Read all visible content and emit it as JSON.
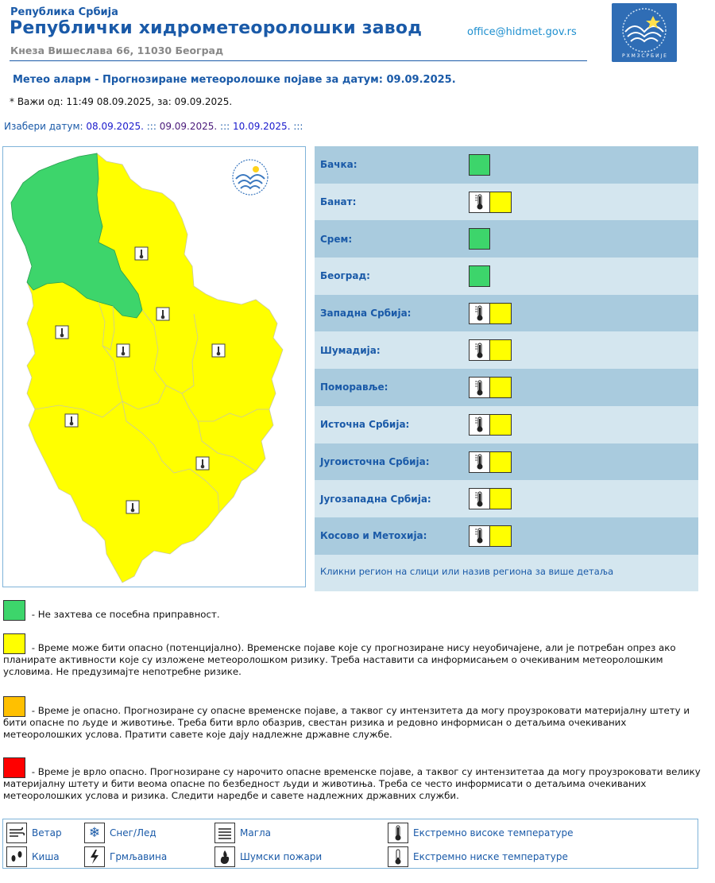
{
  "header": {
    "republic": "Република Србија",
    "institute": "Републички хидрометеоролошки завод",
    "address": "Кнеза Вишеслава 66, 11030 Београд",
    "email": "office@hidmet.gov.rs"
  },
  "alarm": {
    "title": "Метео аларм - Прогнозиране метеоролошке појаве за датум:  09.09.2025.",
    "valid": "* Важи од: 11:49 08.09.2025, за: 09.09.2025."
  },
  "date_select": {
    "label": "Изабери датум: ",
    "dates": [
      "08.09.2025.",
      "09.09.2025.",
      "10.09.2025."
    ],
    "sep": " ::: "
  },
  "regions": [
    {
      "name": "Бачка:",
      "status": "green",
      "icon": ""
    },
    {
      "name": "Банат:",
      "status": "yellow",
      "icon": "thermometer-high-icon"
    },
    {
      "name": "Срем:",
      "status": "green",
      "icon": ""
    },
    {
      "name": "Београд:",
      "status": "green",
      "icon": ""
    },
    {
      "name": "Западна Србија:",
      "status": "yellow",
      "icon": "thermometer-high-icon"
    },
    {
      "name": "Шумадија:",
      "status": "yellow",
      "icon": "thermometer-high-icon"
    },
    {
      "name": "Поморавље:",
      "status": "yellow",
      "icon": "thermometer-high-icon"
    },
    {
      "name": "Источна Србија:",
      "status": "yellow",
      "icon": "thermometer-high-icon"
    },
    {
      "name": "Југоисточна Србија:",
      "status": "yellow",
      "icon": "thermometer-high-icon"
    },
    {
      "name": "Југозападна Србија:",
      "status": "yellow",
      "icon": "thermometer-high-icon"
    },
    {
      "name": "Косово и Метохија:",
      "status": "yellow",
      "icon": "thermometer-high-icon"
    }
  ],
  "region_hint": "Кликни регион на слици или назив региона за више детаља",
  "colors": {
    "green": "#3dd56b",
    "yellow": "#ffff00",
    "orange": "#ffc000",
    "red": "#ff0000"
  },
  "legend": {
    "green": " - Не захтева се посебна приправност.",
    "yellow": " - Време може бити опасно (потенцијално). Временске појаве које су прогнозиране нису неуобичајене, али је потребан опрез ако планирате активности које су изложене метеоролошком ризику. Треба наставити са информисањем о очекиваним метеоролошким условима. Не предузимајте непотребне ризике.",
    "orange": " - Време је опасно. Прогнозиране су опасне временске појаве, а таквог су интензитета да могу проузроковати материјалну штету и бити опасне по људе и животиње. Треба бити врло обазрив, свестан ризика и редовно информисан о детаљима очекиваних метеоролошких услова. Пратити савете које дају надлежне државне службе.",
    "red": " - Време је врло опасно. Прогнозиране су нарочито опасне временске појаве, а таквог су интензитетаа да могу проузроковати велику материјалну штету и бити веома опасне по безбедност људи и животиња. Треба се често информисати о детаљима очекиваних метеоролошких услова и ризика. Следити наредбе и савете надлежних државних служби."
  },
  "icon_legend": {
    "wind": "Ветар",
    "snow": "Снег/Лед",
    "fog": "Магла",
    "heat": "Екстремно високе температуре",
    "rain": "Киша",
    "thunder": "Грмљавина",
    "fire": "Шумски пожари",
    "cold": "Екстремно ниске температуре"
  }
}
